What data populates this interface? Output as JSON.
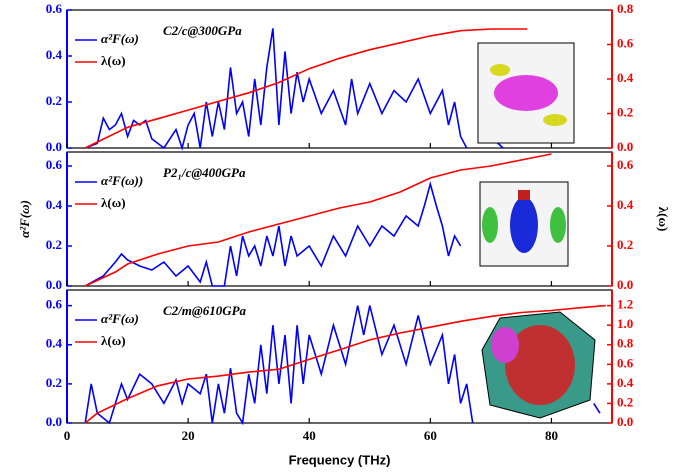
{
  "chart_data": [
    {
      "type": "line",
      "annotation": "C2/c@300GPa",
      "xlim": [
        0,
        90
      ],
      "xticks": [
        0,
        20,
        40,
        60,
        80
      ],
      "ylim": [
        0,
        0.6
      ],
      "yticks": [
        {
          "value": 0,
          "label": "0.0"
        },
        0.2,
        0.4,
        0.6
      ],
      "y2lim": [
        0,
        0.8
      ],
      "y2ticks": [
        {
          "value": 0,
          "label": "0.0"
        },
        0.2,
        0.4,
        0.6,
        0.8
      ],
      "series": [
        {
          "name": "α²F(ω)",
          "color": "#0000ff",
          "x": [
            3,
            5,
            6,
            7,
            8,
            9,
            10,
            11,
            12,
            13,
            14,
            16,
            18,
            19,
            20,
            21,
            22,
            23,
            24,
            25,
            26,
            27,
            28,
            29,
            30,
            31,
            32,
            33,
            34,
            35,
            36,
            37,
            38,
            39,
            40,
            42,
            44,
            46,
            47,
            48,
            50,
            52,
            54,
            56,
            58,
            60,
            62,
            63,
            64,
            65,
            66,
            null,
            70,
            72
          ],
          "values": [
            0,
            0.02,
            0.13,
            0.08,
            0.1,
            0.15,
            0.05,
            0.12,
            0.1,
            0.12,
            0.04,
            0,
            0.08,
            0,
            0.1,
            0.15,
            0,
            0.2,
            0.05,
            0.2,
            0.08,
            0.35,
            0.15,
            0.2,
            0.05,
            0.3,
            0.1,
            0.35,
            0.52,
            0.1,
            0.42,
            0.15,
            0.33,
            0.2,
            0.3,
            0.15,
            0.25,
            0.1,
            0.3,
            0.15,
            0.28,
            0.15,
            0.25,
            0.2,
            0.3,
            0.15,
            0.25,
            0.1,
            0.2,
            0.05,
            0,
            null,
            0.05,
            0
          ]
        },
        {
          "name": "λ(ω)",
          "color": "#ff0000",
          "axis": "y2",
          "x": [
            3,
            10,
            15,
            20,
            25,
            30,
            35,
            40,
            45,
            50,
            55,
            60,
            65,
            70,
            76
          ],
          "values": [
            0,
            0.12,
            0.17,
            0.22,
            0.27,
            0.32,
            0.38,
            0.46,
            0.52,
            0.57,
            0.61,
            0.65,
            0.68,
            0.69,
            0.69
          ]
        }
      ]
    },
    {
      "type": "line",
      "annotation": "P2₁/c@400GPa",
      "ylabel": "α²F(ω)",
      "y2label": "λ(ω)",
      "xlim": [
        0,
        90
      ],
      "xticks": [
        0,
        20,
        40,
        60,
        80
      ],
      "ylim": [
        0,
        0.67
      ],
      "yticks": [
        {
          "value": 0,
          "label": "0.0"
        },
        0.2,
        0.4,
        0.6
      ],
      "y2lim": [
        0,
        0.67
      ],
      "y2ticks": [
        {
          "value": 0,
          "label": "0.0"
        },
        0.2,
        0.4,
        0.6
      ],
      "series": [
        {
          "name": "α²F(ω))",
          "color": "#0000ff",
          "x": [
            3,
            6,
            8,
            9,
            10,
            12,
            14,
            16,
            18,
            20,
            22,
            23,
            24,
            26,
            27,
            28,
            29,
            30,
            31,
            32,
            33,
            34,
            35,
            36,
            37,
            38,
            40,
            42,
            44,
            46,
            48,
            50,
            52,
            54,
            56,
            58,
            59,
            60,
            61,
            62,
            63,
            64,
            65
          ],
          "values": [
            0,
            0.05,
            0.12,
            0.16,
            0.13,
            0.1,
            0.08,
            0.12,
            0.05,
            0.1,
            0.02,
            0.12,
            0,
            0,
            0.2,
            0.05,
            0.25,
            0.15,
            0.2,
            0.1,
            0.25,
            0.15,
            0.3,
            0.1,
            0.25,
            0.15,
            0.2,
            0.1,
            0.25,
            0.15,
            0.3,
            0.2,
            0.3,
            0.25,
            0.35,
            0.3,
            0.4,
            0.51,
            0.4,
            0.3,
            0.15,
            0.25,
            0.2
          ]
        },
        {
          "name": "λ(ω)",
          "color": "#ff0000",
          "axis": "y2",
          "x": [
            3,
            8,
            10,
            15,
            20,
            25,
            30,
            35,
            40,
            45,
            50,
            55,
            60,
            65,
            70,
            75,
            80
          ],
          "values": [
            0,
            0.07,
            0.11,
            0.16,
            0.2,
            0.22,
            0.27,
            0.31,
            0.35,
            0.39,
            0.42,
            0.47,
            0.54,
            0.58,
            0.6,
            0.63,
            0.66
          ]
        }
      ]
    },
    {
      "type": "line",
      "annotation": "C2/m@610GPa",
      "xlabel": "Frequency (THz)",
      "xlim": [
        0,
        90
      ],
      "xticks": [
        0,
        20,
        40,
        60,
        80
      ],
      "ylim": [
        0,
        0.68
      ],
      "yticks": [
        {
          "value": 0,
          "label": "0.0"
        },
        0.2,
        0.4,
        0.6
      ],
      "y2lim": [
        0,
        1.36
      ],
      "y2ticks": [
        {
          "value": 0,
          "label": "0.0"
        },
        0.2,
        0.4,
        0.6,
        0.8,
        {
          "value": 1,
          "label": "1.0"
        },
        1.2
      ],
      "series": [
        {
          "name": "α²F(ω)",
          "color": "#0000ff",
          "x": [
            3,
            4,
            5,
            7,
            8,
            9,
            10,
            12,
            14,
            16,
            18,
            19,
            20,
            22,
            23,
            24,
            25,
            26,
            27,
            28,
            29,
            30,
            31,
            32,
            33,
            34,
            35,
            36,
            37,
            38,
            39,
            40,
            42,
            44,
            46,
            48,
            49,
            50,
            52,
            54,
            56,
            58,
            60,
            62,
            63,
            64,
            65,
            66,
            67,
            null,
            87,
            88
          ],
          "values": [
            0,
            0.2,
            0.05,
            0,
            0.1,
            0.2,
            0.12,
            0.25,
            0.2,
            0.1,
            0.22,
            0.1,
            0.2,
            0.15,
            0.25,
            0,
            0.2,
            0.05,
            0.28,
            0.05,
            0,
            0.25,
            0.1,
            0.4,
            0.15,
            0.5,
            0.2,
            0.45,
            0.1,
            0.5,
            0.2,
            0.45,
            0.25,
            0.5,
            0.3,
            0.6,
            0.45,
            0.6,
            0.35,
            0.5,
            0.3,
            0.55,
            0.3,
            0.45,
            0.2,
            0.35,
            0.1,
            0.2,
            0,
            null,
            0.1,
            0.05
          ]
        },
        {
          "name": "λ(ω)",
          "color": "#ff0000",
          "axis": "y2",
          "x": [
            3,
            5,
            10,
            15,
            20,
            25,
            30,
            35,
            40,
            45,
            50,
            55,
            60,
            65,
            70,
            75,
            80,
            85,
            89
          ],
          "values": [
            0,
            0.1,
            0.25,
            0.38,
            0.45,
            0.48,
            0.52,
            0.55,
            0.65,
            0.75,
            0.85,
            0.92,
            0.98,
            1.04,
            1.09,
            1.13,
            1.15,
            1.18,
            1.2
          ]
        }
      ]
    }
  ]
}
